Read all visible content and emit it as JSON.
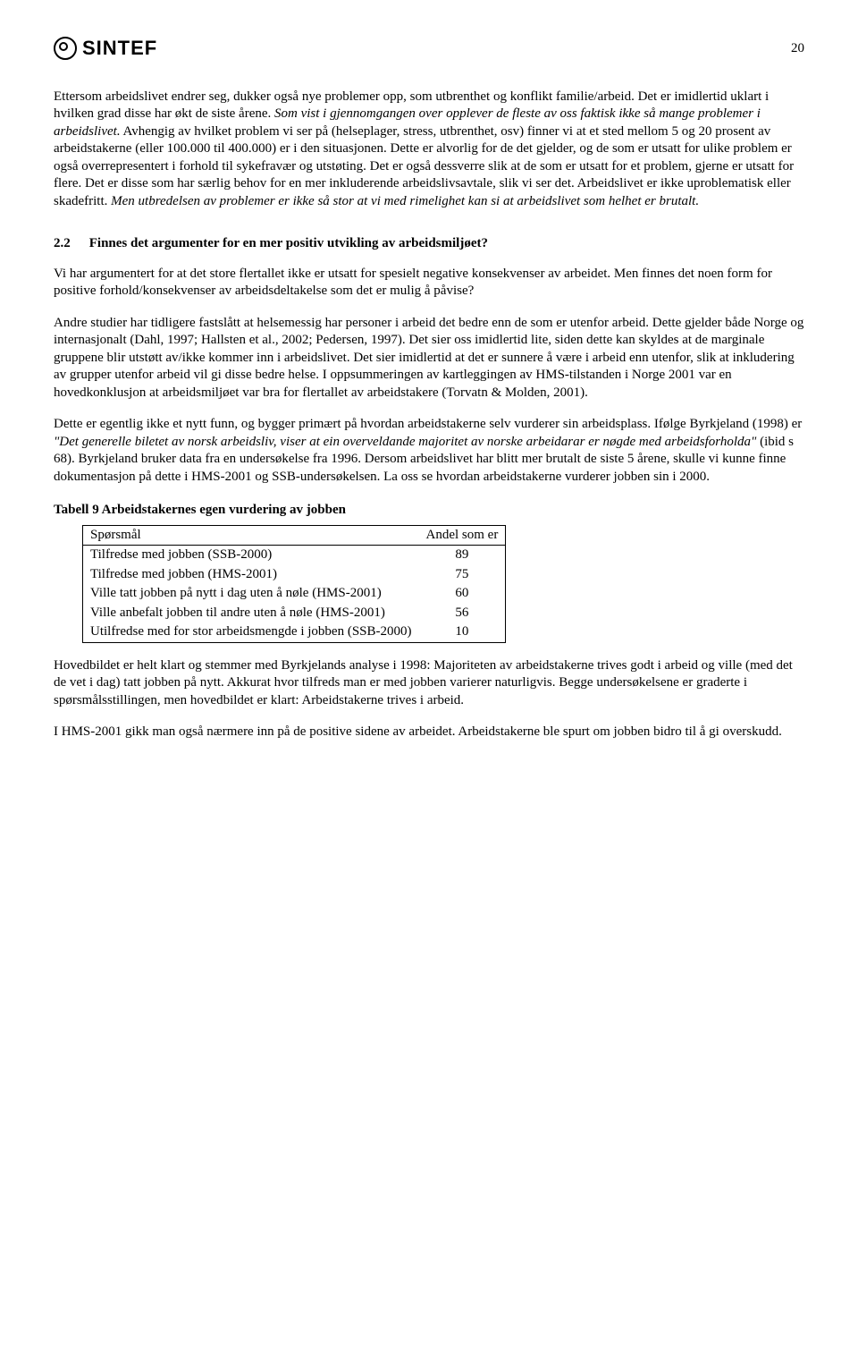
{
  "header": {
    "logo_text": "SINTEF",
    "page_number": "20"
  },
  "paragraphs": {
    "p1a": "Ettersom arbeidslivet endrer seg, dukker også nye problemer opp, som utbrenthet og konflikt familie/arbeid. Det er imidlertid uklart i hvilken grad disse har økt de siste årene.",
    "p1b_italic": "Som vist i gjennomgangen over opplever de fleste av oss faktisk ikke så mange problemer i arbeidslivet.",
    "p1c": " Avhengig av hvilket problem vi ser på (helseplager, stress, utbrenthet, osv) finner vi at et sted mellom 5 og 20 prosent av arbeidstakerne (eller 100.000 til 400.000) er i den situasjonen. Dette er alvorlig for de det gjelder, og de som er utsatt for ulike problem er også overrepresentert i forhold til sykefravær og utstøting. Det er også dessverre slik at de som er utsatt for et problem, gjerne er utsatt for flere. Det er disse som har særlig behov for en mer inkluderende arbeidslivsavtale, slik vi ser det. Arbeidslivet er ikke uproblematisk eller skadefritt. ",
    "p1d_italic": "Men utbredelsen av problemer er ikke så stor at vi med rimelighet kan si at arbeidslivet som helhet er brutalt."
  },
  "section": {
    "number": "2.2",
    "title": "Finnes det argumenter for en mer positiv utvikling av arbeidsmiljøet?"
  },
  "paragraphs2": {
    "p2": "Vi har argumentert for at det store flertallet ikke er utsatt for spesielt negative konsekvenser av arbeidet. Men finnes det noen form for positive forhold/konsekvenser av arbeidsdeltakelse som det er mulig å påvise?",
    "p3": "Andre studier har tidligere fastslått at helsemessig har personer i arbeid det bedre enn de som er utenfor arbeid. Dette gjelder både Norge og internasjonalt (Dahl, 1997; Hallsten et al., 2002; Pedersen, 1997). Det sier oss imidlertid lite, siden dette kan skyldes at de marginale gruppene blir utstøtt av/ikke kommer inn i arbeidslivet. Det sier imidlertid at det er sunnere å være i arbeid enn utenfor, slik at inkludering av grupper utenfor arbeid vil gi disse bedre helse. I oppsummeringen av kartleggingen av HMS-tilstanden i Norge 2001 var en hovedkonklusjon at arbeidsmiljøet var bra for flertallet av arbeidstakere (Torvatn & Molden, 2001).",
    "p4a": "Dette er egentlig ikke et nytt funn, og bygger primært på hvordan arbeidstakerne selv vurderer sin arbeidsplass. Ifølge Byrkjeland (1998) er ",
    "p4b_italic": "\"Det generelle biletet av norsk arbeidsliv, viser at ein overveldande majoritet av norske arbeidarar er nøgde med arbeidsforholda\"",
    "p4c": " (ibid s 68). Byrkjeland bruker data fra en undersøkelse fra 1996. Dersom arbeidslivet har blitt mer brutalt de siste 5 årene, skulle vi kunne finne dokumentasjon på dette i HMS-2001 og SSB-undersøkelsen. La oss se hvordan arbeidstakerne vurderer jobben sin i 2000."
  },
  "table9": {
    "caption": "Tabell 9 Arbeidstakernes egen vurdering av jobben",
    "col1_header": "Spørsmål",
    "col2_header": "Andel som er",
    "rows": [
      {
        "label": "Tilfredse med jobben (SSB-2000)",
        "value": "89"
      },
      {
        "label": "Tilfredse med jobben (HMS-2001)",
        "value": "75"
      },
      {
        "label": "Ville tatt jobben på nytt i dag uten å nøle (HMS-2001)",
        "value": "60"
      },
      {
        "label": "Ville anbefalt jobben til andre uten å nøle (HMS-2001)",
        "value": "56"
      },
      {
        "label": "Utilfredse med for stor arbeidsmengde i jobben (SSB-2000)",
        "value": "10"
      }
    ]
  },
  "paragraphs3": {
    "p5": "Hovedbildet er helt klart og stemmer med Byrkjelands analyse i 1998: Majoriteten av arbeidstakerne trives godt i arbeid og ville (med det de vet i dag) tatt jobben på nytt. Akkurat hvor tilfreds man er med jobben varierer naturligvis. Begge undersøkelsene er graderte i spørsmålsstillingen, men hovedbildet er klart: Arbeidstakerne trives i arbeid.",
    "p6": "I HMS-2001 gikk man også nærmere inn på de positive sidene av arbeidet. Arbeidstakerne ble spurt om jobben bidro til å gi overskudd."
  }
}
